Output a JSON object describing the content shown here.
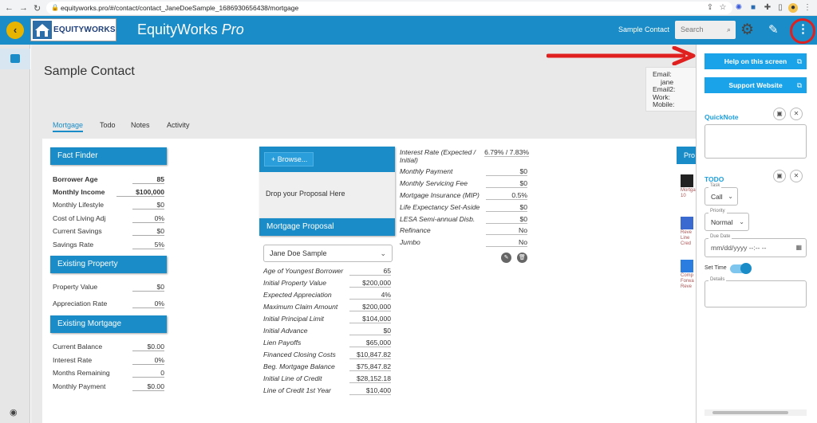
{
  "browser": {
    "url": "equityworks.pro/#/contact/contact_JaneDoeSample_1686930656438/mortgage"
  },
  "header": {
    "logo_text": "EQUITYWORKS",
    "title_main": "EquityWorks ",
    "title_italic": "Pro",
    "contact_name": "Sample Contact",
    "search_placeholder": "Search"
  },
  "page": {
    "title": "Sample Contact",
    "contact_fields": [
      "Email:",
      "Email2:",
      "Work:",
      "Mobile:"
    ],
    "email_value": "jane"
  },
  "tabs": [
    "Mortgage",
    "Todo",
    "Notes",
    "Activity"
  ],
  "fact_finder": {
    "title": "Fact Finder",
    "rows": [
      {
        "label": "Borrower Age",
        "value": "85"
      },
      {
        "label": "Monthly Income",
        "value": "$100,000"
      },
      {
        "label": "Monthly Lifestyle",
        "value": "$0"
      },
      {
        "label": "Cost of Living Adj",
        "value": "0%"
      },
      {
        "label": "Current Savings",
        "value": "$0"
      },
      {
        "label": "Savings Rate",
        "value": "5%"
      }
    ]
  },
  "existing_property": {
    "title": "Existing Property",
    "rows": [
      {
        "label": "Property Value",
        "value": "$0"
      },
      {
        "label": "Appreciation Rate",
        "value": "0%"
      }
    ]
  },
  "existing_mortgage": {
    "title": "Existing Mortgage",
    "rows": [
      {
        "label": "Current Balance",
        "value": "$0.00"
      },
      {
        "label": "Interest Rate",
        "value": "0%"
      },
      {
        "label": "Months Remaining",
        "value": "0"
      },
      {
        "label": "Monthly Payment",
        "value": "$0.00"
      }
    ]
  },
  "proposal": {
    "browse_label": "Browse...",
    "drop_text": "Drop your Proposal Here",
    "section_title": "Mortgage Proposal",
    "selected": "Jane Doe Sample",
    "rows": [
      {
        "label": "Age of Youngest Borrower",
        "value": "65"
      },
      {
        "label": "Initial Property Value",
        "value": "$200,000"
      },
      {
        "label": "Expected Appreciation",
        "value": "4%"
      },
      {
        "label": "Maximum Claim Amount",
        "value": "$200,000"
      },
      {
        "label": "Initial Principal Limit",
        "value": "$104,000"
      },
      {
        "label": "Initial Advance",
        "value": "$0"
      },
      {
        "label": "Lien Payoffs",
        "value": "$65,000"
      },
      {
        "label": "Financed Closing Costs",
        "value": "$10,847.82"
      },
      {
        "label": "Beg. Mortgage Balance",
        "value": "$75,847.82"
      },
      {
        "label": "Initial Line of Credit",
        "value": "$28,152.18"
      },
      {
        "label": "Line of Credit 1st Year",
        "value": "$10,400"
      }
    ],
    "right_rows": [
      {
        "label": "Interest Rate (Expected / Initial)",
        "value": "6.79% / 7.83%"
      },
      {
        "label": "Monthly Payment",
        "value": "$0"
      },
      {
        "label": "Monthly Servicing Fee",
        "value": "$0"
      },
      {
        "label": "Mortgage Insurance (MIP)",
        "value": "0.5%"
      },
      {
        "label": "Life Expectancy Set-Aside",
        "value": "$0"
      },
      {
        "label": "LESA Semi-annual Disb.",
        "value": "$0"
      },
      {
        "label": "Refinance",
        "value": "No"
      },
      {
        "label": "Jumbo",
        "value": "No"
      }
    ]
  },
  "products": {
    "header": "Pro",
    "items": [
      "Mortga 10",
      "Reve Line Cred",
      "Comp Forwa Reve"
    ]
  },
  "right_panel": {
    "help_label": "Help on this screen",
    "support_label": "Support Website",
    "quicknote_label": "QuickNote",
    "todo_label": "TODO",
    "task_label": "Task",
    "task_value": "Call",
    "priority_label": "Priority",
    "priority_value": "Normal",
    "due_label": "Due Date",
    "due_placeholder": "mm/dd/yyyy --:-- --",
    "settime_label": "Set Time",
    "details_label": "Details"
  },
  "colors": {
    "primary": "#1a8cc8",
    "accent_button": "#1aa3e8",
    "annotation_red": "#e0201f",
    "back_button": "#e8b400"
  }
}
